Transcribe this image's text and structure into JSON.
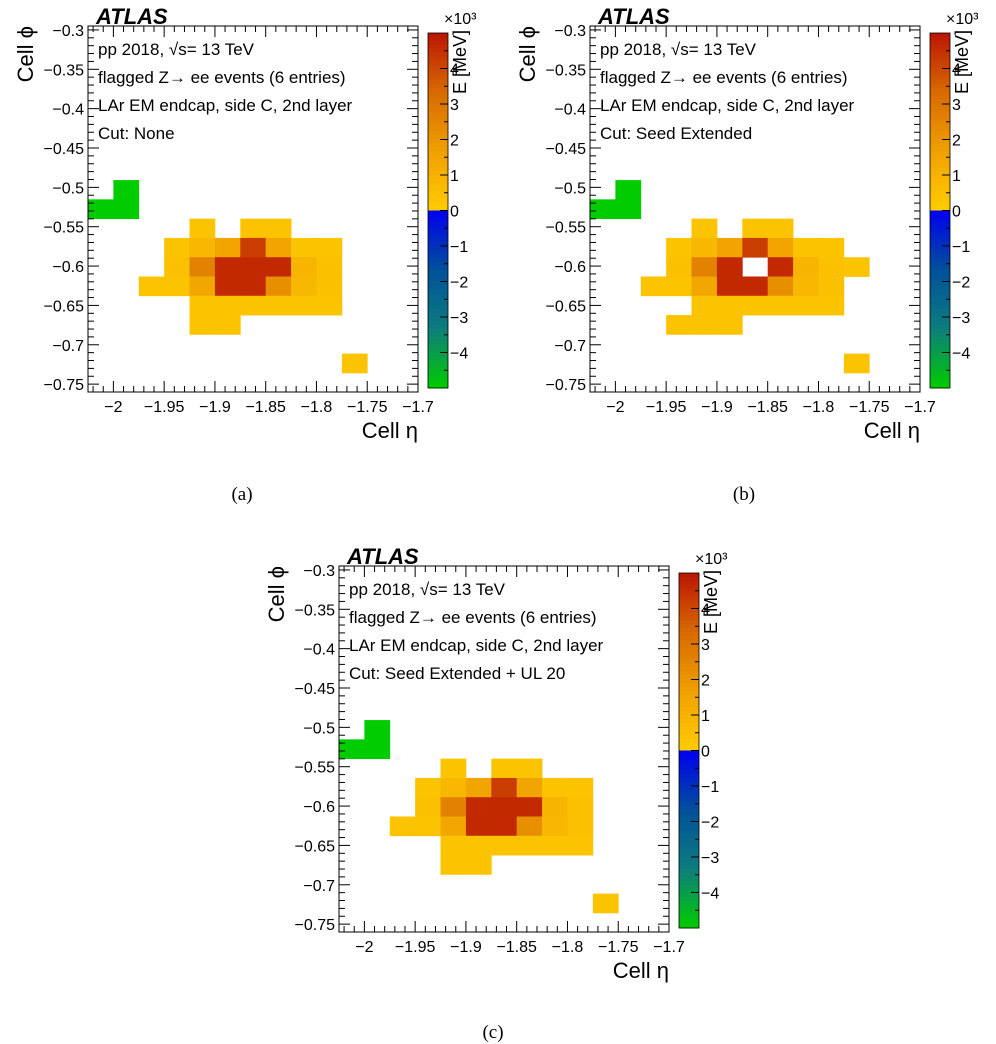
{
  "colors": {
    "positive_scale": [
      "#ffcc00",
      "#f0a000",
      "#d86a00",
      "#bb1500"
    ],
    "negative_scale": [
      "#0000f0",
      "#00509a",
      "#0d7d7d",
      "#00cc00"
    ]
  },
  "panels": [
    {
      "caption": "(a)",
      "logo": "ATLAS",
      "legend_lines": [
        "pp 2018, √s= 13 TeV",
        "flagged Z→ ee events (6 entries)",
        "LAr EM endcap, side C, 2nd layer",
        "Cut: None"
      ],
      "xlabel": "Cell η",
      "ylabel": "Cell ϕ",
      "zlabel": "E [MeV]",
      "zmultiplier": "×10³",
      "xticks": [
        "−2",
        "−1.95",
        "−1.9",
        "−1.85",
        "−1.8",
        "−1.75",
        "−1.7"
      ],
      "yticks": [
        "−0.3",
        "−0.35",
        "−0.4",
        "−0.45",
        "−0.5",
        "−0.55",
        "−0.6",
        "−0.65",
        "−0.7",
        "−0.75"
      ],
      "zticks": [
        "4",
        "3",
        "2",
        "1",
        "0",
        "−1",
        "−2",
        "−3",
        "−4"
      ]
    },
    {
      "caption": "(b)",
      "logo": "ATLAS",
      "legend_lines": [
        "pp 2018, √s= 13 TeV",
        "flagged Z→ ee events (6 entries)",
        "LAr EM endcap, side C, 2nd layer",
        "Cut: Seed Extended"
      ],
      "xlabel": "Cell η",
      "ylabel": "Cell ϕ",
      "zlabel": "E [MeV]",
      "zmultiplier": "×10³",
      "xticks": [
        "−2",
        "−1.95",
        "−1.9",
        "−1.85",
        "−1.8",
        "−1.75",
        "−1.7"
      ],
      "yticks": [
        "−0.3",
        "−0.35",
        "−0.4",
        "−0.45",
        "−0.5",
        "−0.55",
        "−0.6",
        "−0.65",
        "−0.7",
        "−0.75"
      ],
      "zticks": [
        "4",
        "3",
        "2",
        "1",
        "0",
        "−1",
        "−2",
        "−3",
        "−4"
      ]
    },
    {
      "caption": "(c)",
      "logo": "ATLAS",
      "legend_lines": [
        "pp 2018, √s= 13 TeV",
        "flagged Z→ ee events (6 entries)",
        "LAr EM endcap, side C, 2nd layer",
        "Cut: Seed Extended  + UL 20"
      ],
      "xlabel": "Cell η",
      "ylabel": "Cell ϕ",
      "zlabel": "E [MeV]",
      "zmultiplier": "×10³",
      "xticks": [
        "−2",
        "−1.95",
        "−1.9",
        "−1.85",
        "−1.8",
        "−1.75",
        "−1.7"
      ],
      "yticks": [
        "−0.3",
        "−0.35",
        "−0.4",
        "−0.45",
        "−0.5",
        "−0.55",
        "−0.6",
        "−0.65",
        "−0.7",
        "−0.75"
      ],
      "zticks": [
        "4",
        "3",
        "2",
        "1",
        "0",
        "−1",
        "−2",
        "−3",
        "−4"
      ]
    }
  ],
  "chart_data": [
    {
      "type": "heatmap",
      "title": "",
      "xlabel": "Cell η",
      "ylabel": "Cell ϕ",
      "zlabel": "E [MeV] ×10³",
      "xlim": [
        -2.025,
        -1.7
      ],
      "ylim": [
        -0.76,
        -0.295
      ],
      "zlim": [
        -5,
        5
      ],
      "cell_size": [
        0.025,
        0.0245
      ],
      "cells": [
        {
          "x": -2.0125,
          "y": -0.5275,
          "v": -5.0
        },
        {
          "x": -1.9875,
          "y": -0.5275,
          "v": -5.0
        },
        {
          "x": -1.9875,
          "y": -0.503,
          "v": -5.0
        },
        {
          "x": -1.9125,
          "y": -0.552,
          "v": 0.3
        },
        {
          "x": -1.8625,
          "y": -0.552,
          "v": 0.3
        },
        {
          "x": -1.8375,
          "y": -0.552,
          "v": 0.3
        },
        {
          "x": -1.9375,
          "y": -0.5765,
          "v": 0.3
        },
        {
          "x": -1.9125,
          "y": -0.5765,
          "v": 0.8
        },
        {
          "x": -1.8875,
          "y": -0.5765,
          "v": 1.5
        },
        {
          "x": -1.8625,
          "y": -0.5765,
          "v": 4.2
        },
        {
          "x": -1.8375,
          "y": -0.5765,
          "v": 1.5
        },
        {
          "x": -1.8125,
          "y": -0.5765,
          "v": 0.3
        },
        {
          "x": -1.7875,
          "y": -0.5765,
          "v": 0.3
        },
        {
          "x": -1.9375,
          "y": -0.601,
          "v": 0.4
        },
        {
          "x": -1.9125,
          "y": -0.601,
          "v": 2.6
        },
        {
          "x": -1.8875,
          "y": -0.601,
          "v": 4.6
        },
        {
          "x": -1.8625,
          "y": -0.601,
          "v": 4.6
        },
        {
          "x": -1.8375,
          "y": -0.601,
          "v": 4.6
        },
        {
          "x": -1.8125,
          "y": -0.601,
          "v": 0.9
        },
        {
          "x": -1.7875,
          "y": -0.601,
          "v": 0.4
        },
        {
          "x": -1.9625,
          "y": -0.6255,
          "v": 0.3
        },
        {
          "x": -1.9375,
          "y": -0.6255,
          "v": 0.3
        },
        {
          "x": -1.9125,
          "y": -0.6255,
          "v": 1.4
        },
        {
          "x": -1.8875,
          "y": -0.6255,
          "v": 4.6
        },
        {
          "x": -1.8625,
          "y": -0.6255,
          "v": 4.6
        },
        {
          "x": -1.8375,
          "y": -0.6255,
          "v": 2.2
        },
        {
          "x": -1.8125,
          "y": -0.6255,
          "v": 0.8
        },
        {
          "x": -1.7875,
          "y": -0.6255,
          "v": 0.4
        },
        {
          "x": -1.9125,
          "y": -0.65,
          "v": 0.3
        },
        {
          "x": -1.8875,
          "y": -0.65,
          "v": 0.3
        },
        {
          "x": -1.8625,
          "y": -0.65,
          "v": 0.3
        },
        {
          "x": -1.8375,
          "y": -0.65,
          "v": 0.3
        },
        {
          "x": -1.8125,
          "y": -0.65,
          "v": 0.3
        },
        {
          "x": -1.7875,
          "y": -0.65,
          "v": 0.3
        },
        {
          "x": -1.9125,
          "y": -0.6745,
          "v": 0.3
        },
        {
          "x": -1.8875,
          "y": -0.6745,
          "v": 0.3
        },
        {
          "x": -1.7625,
          "y": -0.7235,
          "v": 0.3
        }
      ]
    },
    {
      "type": "heatmap",
      "title": "",
      "xlabel": "Cell η",
      "ylabel": "Cell ϕ",
      "zlabel": "E [MeV] ×10³",
      "xlim": [
        -2.025,
        -1.7
      ],
      "ylim": [
        -0.76,
        -0.295
      ],
      "zlim": [
        -5,
        5
      ],
      "cell_size": [
        0.025,
        0.0245
      ],
      "cells": [
        {
          "x": -2.0125,
          "y": -0.5275,
          "v": -5.0
        },
        {
          "x": -1.9875,
          "y": -0.5275,
          "v": -5.0
        },
        {
          "x": -1.9875,
          "y": -0.503,
          "v": -5.0
        },
        {
          "x": -1.9125,
          "y": -0.552,
          "v": 0.3
        },
        {
          "x": -1.8625,
          "y": -0.552,
          "v": 0.3
        },
        {
          "x": -1.8375,
          "y": -0.552,
          "v": 0.3
        },
        {
          "x": -1.9375,
          "y": -0.5765,
          "v": 0.3
        },
        {
          "x": -1.9125,
          "y": -0.5765,
          "v": 0.8
        },
        {
          "x": -1.8875,
          "y": -0.5765,
          "v": 1.5
        },
        {
          "x": -1.8625,
          "y": -0.5765,
          "v": 4.2
        },
        {
          "x": -1.8375,
          "y": -0.5765,
          "v": 1.5
        },
        {
          "x": -1.8125,
          "y": -0.5765,
          "v": 0.3
        },
        {
          "x": -1.7875,
          "y": -0.5765,
          "v": 0.3
        },
        {
          "x": -1.9375,
          "y": -0.601,
          "v": 0.4
        },
        {
          "x": -1.9125,
          "y": -0.601,
          "v": 2.6
        },
        {
          "x": -1.8875,
          "y": -0.601,
          "v": 4.6
        },
        {
          "x": -1.8375,
          "y": -0.601,
          "v": 4.6
        },
        {
          "x": -1.8125,
          "y": -0.601,
          "v": 0.9
        },
        {
          "x": -1.7875,
          "y": -0.601,
          "v": 0.4
        },
        {
          "x": -1.7625,
          "y": -0.601,
          "v": 0.3
        },
        {
          "x": -1.9625,
          "y": -0.6255,
          "v": 0.3
        },
        {
          "x": -1.9375,
          "y": -0.6255,
          "v": 0.3
        },
        {
          "x": -1.9125,
          "y": -0.6255,
          "v": 1.4
        },
        {
          "x": -1.8875,
          "y": -0.6255,
          "v": 4.6
        },
        {
          "x": -1.8625,
          "y": -0.6255,
          "v": 4.6
        },
        {
          "x": -1.8375,
          "y": -0.6255,
          "v": 2.2
        },
        {
          "x": -1.8125,
          "y": -0.6255,
          "v": 0.8
        },
        {
          "x": -1.7875,
          "y": -0.6255,
          "v": 0.4
        },
        {
          "x": -1.9125,
          "y": -0.65,
          "v": 0.3
        },
        {
          "x": -1.8875,
          "y": -0.65,
          "v": 0.3
        },
        {
          "x": -1.8625,
          "y": -0.65,
          "v": 0.3
        },
        {
          "x": -1.8375,
          "y": -0.65,
          "v": 0.3
        },
        {
          "x": -1.8125,
          "y": -0.65,
          "v": 0.3
        },
        {
          "x": -1.7875,
          "y": -0.65,
          "v": 0.3
        },
        {
          "x": -1.9375,
          "y": -0.6745,
          "v": 0.3
        },
        {
          "x": -1.9125,
          "y": -0.6745,
          "v": 0.3
        },
        {
          "x": -1.8875,
          "y": -0.6745,
          "v": 0.3
        },
        {
          "x": -1.7625,
          "y": -0.7235,
          "v": 0.3
        }
      ]
    },
    {
      "type": "heatmap",
      "title": "",
      "xlabel": "Cell η",
      "ylabel": "Cell ϕ",
      "zlabel": "E [MeV] ×10³",
      "xlim": [
        -2.025,
        -1.7
      ],
      "ylim": [
        -0.76,
        -0.295
      ],
      "zlim": [
        -5,
        5
      ],
      "cell_size": [
        0.025,
        0.0245
      ],
      "cells": [
        {
          "x": -2.0125,
          "y": -0.5275,
          "v": -5.0
        },
        {
          "x": -1.9875,
          "y": -0.5275,
          "v": -5.0
        },
        {
          "x": -1.9875,
          "y": -0.503,
          "v": -5.0
        },
        {
          "x": -1.9125,
          "y": -0.552,
          "v": 0.3
        },
        {
          "x": -1.8625,
          "y": -0.552,
          "v": 0.3
        },
        {
          "x": -1.8375,
          "y": -0.552,
          "v": 0.3
        },
        {
          "x": -1.9375,
          "y": -0.5765,
          "v": 0.3
        },
        {
          "x": -1.9125,
          "y": -0.5765,
          "v": 0.8
        },
        {
          "x": -1.8875,
          "y": -0.5765,
          "v": 1.5
        },
        {
          "x": -1.8625,
          "y": -0.5765,
          "v": 4.2
        },
        {
          "x": -1.8375,
          "y": -0.5765,
          "v": 1.5
        },
        {
          "x": -1.8125,
          "y": -0.5765,
          "v": 0.3
        },
        {
          "x": -1.7875,
          "y": -0.5765,
          "v": 0.3
        },
        {
          "x": -1.9375,
          "y": -0.601,
          "v": 0.4
        },
        {
          "x": -1.9125,
          "y": -0.601,
          "v": 2.6
        },
        {
          "x": -1.8875,
          "y": -0.601,
          "v": 4.6
        },
        {
          "x": -1.8625,
          "y": -0.601,
          "v": 4.6
        },
        {
          "x": -1.8375,
          "y": -0.601,
          "v": 4.6
        },
        {
          "x": -1.8125,
          "y": -0.601,
          "v": 0.9
        },
        {
          "x": -1.7875,
          "y": -0.601,
          "v": 0.4
        },
        {
          "x": -1.9625,
          "y": -0.6255,
          "v": 0.3
        },
        {
          "x": -1.9375,
          "y": -0.6255,
          "v": 0.3
        },
        {
          "x": -1.9125,
          "y": -0.6255,
          "v": 1.4
        },
        {
          "x": -1.8875,
          "y": -0.6255,
          "v": 4.6
        },
        {
          "x": -1.8625,
          "y": -0.6255,
          "v": 4.6
        },
        {
          "x": -1.8375,
          "y": -0.6255,
          "v": 2.2
        },
        {
          "x": -1.8125,
          "y": -0.6255,
          "v": 0.8
        },
        {
          "x": -1.7875,
          "y": -0.6255,
          "v": 0.4
        },
        {
          "x": -1.9125,
          "y": -0.65,
          "v": 0.3
        },
        {
          "x": -1.8875,
          "y": -0.65,
          "v": 0.3
        },
        {
          "x": -1.8625,
          "y": -0.65,
          "v": 0.3
        },
        {
          "x": -1.8375,
          "y": -0.65,
          "v": 0.3
        },
        {
          "x": -1.8125,
          "y": -0.65,
          "v": 0.3
        },
        {
          "x": -1.7875,
          "y": -0.65,
          "v": 0.3
        },
        {
          "x": -1.9125,
          "y": -0.6745,
          "v": 0.3
        },
        {
          "x": -1.8875,
          "y": -0.6745,
          "v": 0.3
        },
        {
          "x": -1.7625,
          "y": -0.7235,
          "v": 0.3
        }
      ]
    }
  ]
}
